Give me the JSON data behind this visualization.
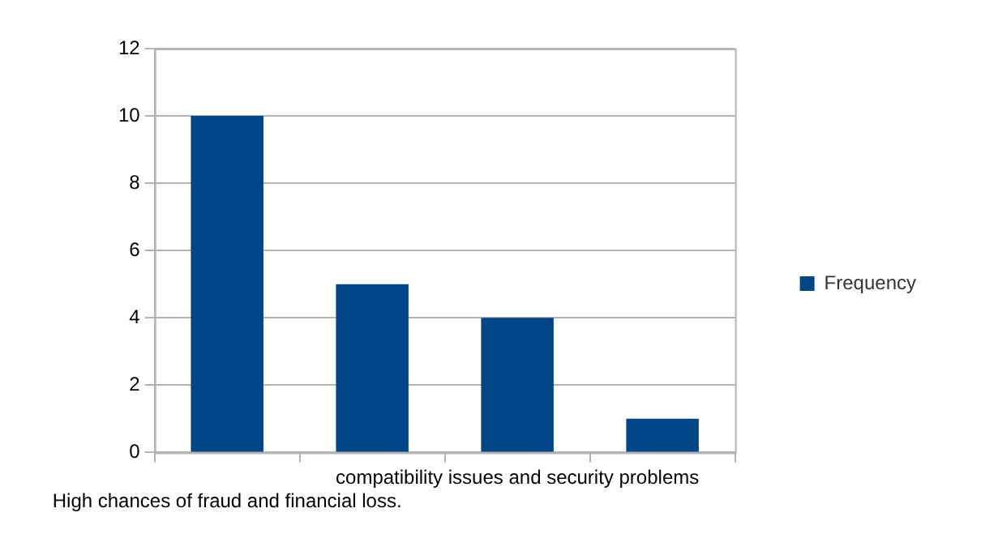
{
  "chart_data": {
    "type": "bar",
    "categories": [
      "High chances of fraud and financial loss.",
      null,
      "compatibility issues and security problems",
      null
    ],
    "series": [
      {
        "name": "Frequency",
        "color": "#004586",
        "values": [
          10,
          5,
          4,
          1
        ]
      }
    ],
    "ylim": [
      0,
      12
    ],
    "yticks": [
      0,
      2,
      4,
      6,
      8,
      10,
      12
    ],
    "grid": "y",
    "legend": "right"
  }
}
